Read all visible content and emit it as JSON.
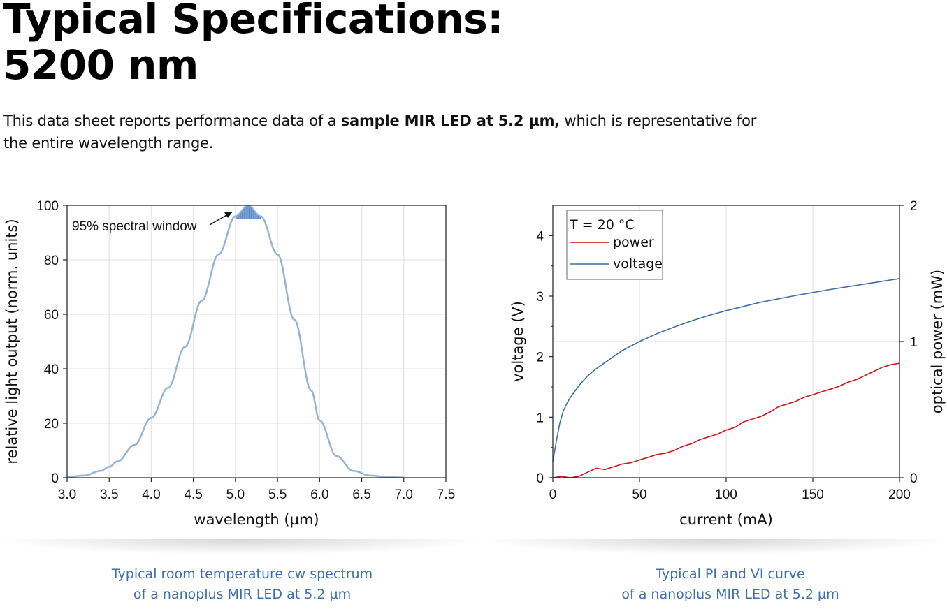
{
  "header": {
    "title_line1": "Typical Specifications:",
    "title_line2": "5200 nm"
  },
  "intro": {
    "text_before": "This data sheet reports performance data of a ",
    "text_bold": "sample MIR LED at 5.2 µm,",
    "text_after": " which is representative for the entire wavelength range."
  },
  "captions": {
    "left": [
      "Typical room temperature cw spectrum",
      "of a nanoplus MIR LED at 5.2 µm"
    ],
    "right": [
      "Typical PI and VI curve",
      "of a nanoplus MIR LED at 5.2 µm"
    ]
  },
  "colors": {
    "spectrum": "#8fb4dd",
    "spectrum_dark": "#7d8ba0",
    "window_fill": "#2d64b0",
    "power": "#d0161b",
    "voltage": "#3f6ea8",
    "caption": "#3d6fae"
  },
  "chart_data": [
    {
      "type": "line",
      "xlabel": "wavelength (µm)",
      "ylabel": "relative light output (norm. units)",
      "xlim": [
        3.0,
        7.5
      ],
      "ylim": [
        0,
        100
      ],
      "xticks": [
        "3.0",
        "3.5",
        "4.0",
        "4.5",
        "5.0",
        "5.5",
        "6.0",
        "6.5",
        "7.0",
        "7.5"
      ],
      "yticks": [
        "0",
        "20",
        "40",
        "60",
        "80",
        "100"
      ],
      "grid": true,
      "annotation": "95% spectral window",
      "spectral_window": [
        5.0,
        5.3
      ],
      "series": [
        {
          "x": [
            3.0,
            3.2,
            3.4,
            3.5,
            3.6,
            3.8,
            4.0,
            4.2,
            4.4,
            4.6,
            4.8,
            5.0,
            5.15,
            5.3,
            5.5,
            5.7,
            5.9,
            6.0,
            6.2,
            6.4,
            6.6,
            6.8,
            7.0
          ],
          "values": [
            0.3,
            0.8,
            2.5,
            4.0,
            6.0,
            12,
            22,
            33,
            48,
            65,
            82,
            96,
            100,
            96,
            82,
            58,
            32,
            21,
            8,
            2.5,
            0.8,
            0.3,
            0.1
          ]
        }
      ]
    },
    {
      "type": "line",
      "xlabel": "current (mA)",
      "ylabel": "voltage (V)",
      "y2label": "optical power (mW)",
      "xlim": [
        0,
        200
      ],
      "ylim": [
        0,
        4.5
      ],
      "y2lim": [
        0,
        2
      ],
      "xticks": [
        "0",
        "50",
        "100",
        "150",
        "200"
      ],
      "yticks": [
        "0",
        "1",
        "2",
        "3",
        "4"
      ],
      "y2ticks": [
        "0",
        "1",
        "2"
      ],
      "grid": true,
      "legend_title": "T = 20 °C",
      "legend_position": "top-left",
      "series": [
        {
          "name": "power",
          "axis": "right",
          "x": [
            0,
            5,
            10,
            15,
            20,
            25,
            30,
            35,
            40,
            45,
            50,
            55,
            60,
            65,
            70,
            75,
            80,
            85,
            90,
            95,
            100,
            105,
            110,
            115,
            120,
            125,
            130,
            135,
            140,
            145,
            150,
            155,
            160,
            165,
            170,
            175,
            180,
            185,
            190,
            195,
            200
          ],
          "values": [
            0.0,
            0.01,
            0.0,
            0.01,
            0.04,
            0.07,
            0.06,
            0.08,
            0.1,
            0.11,
            0.13,
            0.15,
            0.17,
            0.18,
            0.2,
            0.23,
            0.25,
            0.28,
            0.3,
            0.32,
            0.35,
            0.37,
            0.41,
            0.43,
            0.45,
            0.48,
            0.52,
            0.54,
            0.56,
            0.59,
            0.61,
            0.63,
            0.65,
            0.67,
            0.7,
            0.72,
            0.75,
            0.78,
            0.81,
            0.83,
            0.84
          ]
        },
        {
          "name": "voltage",
          "axis": "left",
          "x": [
            0,
            2,
            4,
            6,
            8,
            10,
            15,
            20,
            25,
            30,
            40,
            50,
            60,
            70,
            80,
            90,
            100,
            120,
            140,
            160,
            180,
            200
          ],
          "values": [
            0.27,
            0.6,
            0.9,
            1.1,
            1.22,
            1.32,
            1.52,
            1.68,
            1.8,
            1.9,
            2.1,
            2.25,
            2.38,
            2.49,
            2.59,
            2.68,
            2.76,
            2.9,
            3.01,
            3.11,
            3.2,
            3.29
          ]
        }
      ]
    }
  ]
}
